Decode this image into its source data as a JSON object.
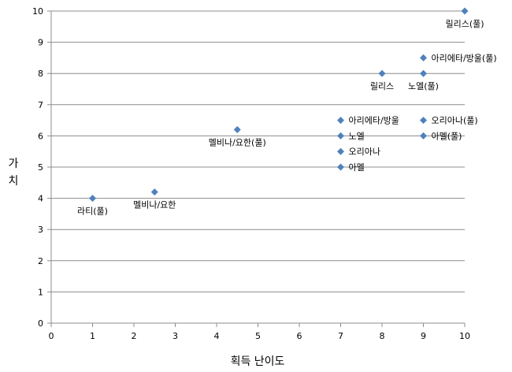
{
  "chart_data": {
    "type": "scatter",
    "title": "",
    "xlabel": "획득 난이도",
    "ylabel": "가치",
    "xlim": [
      0,
      10
    ],
    "ylim": [
      0,
      10
    ],
    "xticks": [
      0,
      1,
      2,
      3,
      4,
      5,
      6,
      7,
      8,
      9,
      10
    ],
    "yticks": [
      0,
      1,
      2,
      3,
      4,
      5,
      6,
      7,
      8,
      9,
      10
    ],
    "grid": "horizontal",
    "legend": "none",
    "marker_color": "#4F81BD",
    "points": [
      {
        "label": "라티(풀)",
        "x": 1,
        "y": 4,
        "label_pos": "below"
      },
      {
        "label": "멜비나/요한",
        "x": 2.5,
        "y": 4.2,
        "label_pos": "below"
      },
      {
        "label": "멜비나/요한(풀)",
        "x": 4.5,
        "y": 6.2,
        "label_pos": "below"
      },
      {
        "label": "아리에타/방울",
        "x": 7,
        "y": 6.5,
        "label_pos": "right"
      },
      {
        "label": "노엘",
        "x": 7,
        "y": 6,
        "label_pos": "right"
      },
      {
        "label": "오리아나",
        "x": 7,
        "y": 5.5,
        "label_pos": "right"
      },
      {
        "label": "아멜",
        "x": 7,
        "y": 5,
        "label_pos": "right"
      },
      {
        "label": "릴리스",
        "x": 8,
        "y": 8,
        "label_pos": "below"
      },
      {
        "label": "아리에타/방울(풀)",
        "x": 9,
        "y": 8.5,
        "label_pos": "right"
      },
      {
        "label": "노엘(풀)",
        "x": 9,
        "y": 8,
        "label_pos": "below"
      },
      {
        "label": "오리아나(풀)",
        "x": 9,
        "y": 6.5,
        "label_pos": "right"
      },
      {
        "label": "아멜(풀)",
        "x": 9,
        "y": 6,
        "label_pos": "right"
      },
      {
        "label": "릴리스(풀)",
        "x": 10,
        "y": 10,
        "label_pos": "below"
      }
    ]
  }
}
